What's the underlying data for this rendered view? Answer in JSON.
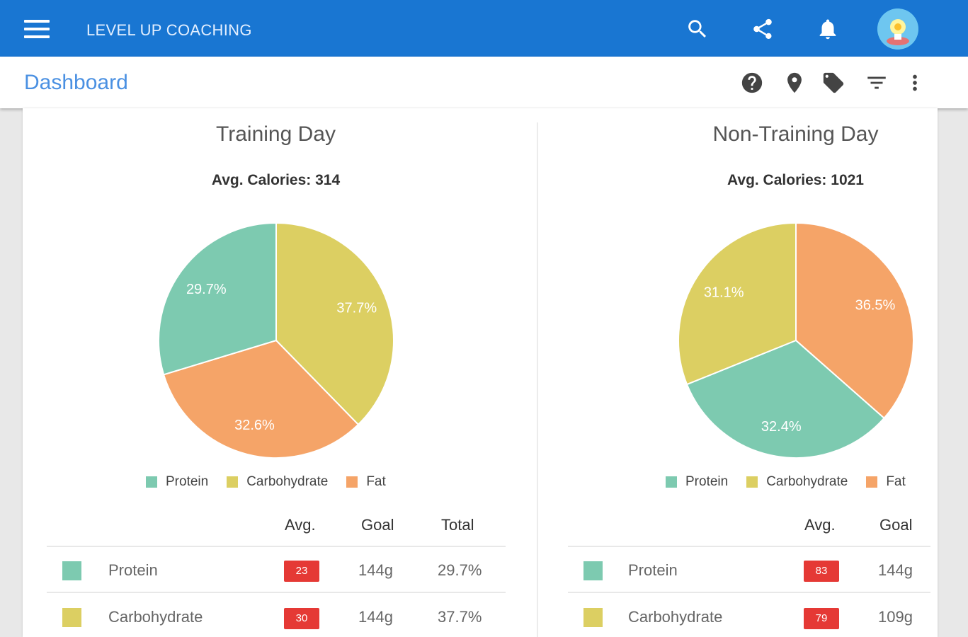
{
  "app": {
    "title": "LEVEL UP COACHING"
  },
  "subheader": {
    "title": "Dashboard"
  },
  "colors": {
    "protein": "#7dcab0",
    "carbohydrate": "#dccf62",
    "fat": "#f5a468",
    "appbar": "#1976d2",
    "badge": "#e53935"
  },
  "legend": [
    "Protein",
    "Carbohydrate",
    "Fat"
  ],
  "training": {
    "title": "Training Day",
    "avg_calories": "Avg. Calories: 314",
    "headers": [
      "Avg.",
      "Goal",
      "Total"
    ],
    "rows": [
      {
        "name": "Protein",
        "avg": "23",
        "goal": "144g",
        "total": "29.7%"
      },
      {
        "name": "Carbohydrate",
        "avg": "30",
        "goal": "144g",
        "total": "37.7%"
      }
    ]
  },
  "nontraining": {
    "title": "Non-Training Day",
    "avg_calories": "Avg. Calories: 1021",
    "headers": [
      "Avg.",
      "Goal"
    ],
    "rows": [
      {
        "name": "Protein",
        "avg": "83",
        "goal": "144g"
      },
      {
        "name": "Carbohydrate",
        "avg": "79",
        "goal": "109g"
      }
    ]
  },
  "chart_data": [
    {
      "type": "pie",
      "title": "Training Day",
      "categories": [
        "Protein",
        "Carbohydrate",
        "Fat"
      ],
      "values": [
        29.7,
        37.7,
        32.6
      ],
      "labels": [
        "29.7%",
        "37.7%",
        "32.6%"
      ]
    },
    {
      "type": "pie",
      "title": "Non-Training Day",
      "categories": [
        "Protein",
        "Carbohydrate",
        "Fat"
      ],
      "values": [
        32.4,
        31.1,
        36.5
      ],
      "labels": [
        "32.4%",
        "31.1%",
        "36.5%"
      ]
    }
  ]
}
